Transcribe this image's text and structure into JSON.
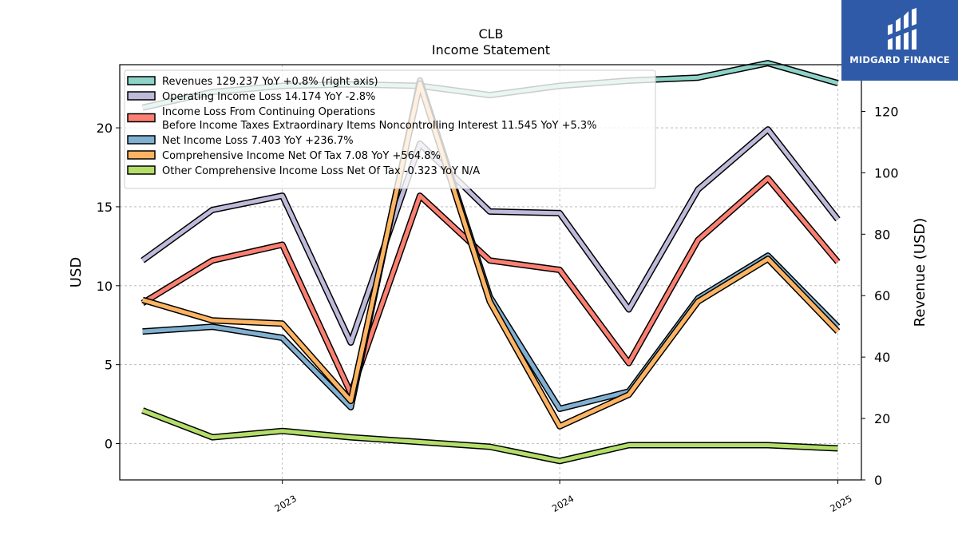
{
  "brand": {
    "name": "MIDGARD FINANCE",
    "logo_icon": "midgard-logo-icon",
    "bg_color": "#2f5aa8"
  },
  "chart_data": {
    "type": "line",
    "title": "CLB",
    "subtitle": "Income Statement",
    "ylabel": "USD",
    "y2label": "Revenue (USD)",
    "ylim": [
      -2.3,
      24.0
    ],
    "y2lim": [
      0,
      135.2
    ],
    "yticks": [
      0,
      5,
      10,
      15,
      20
    ],
    "y2ticks": [
      0,
      20,
      40,
      60,
      80,
      100,
      120
    ],
    "xticks": [
      "2023",
      "2024",
      "2025"
    ],
    "x": [
      "2022-07-01",
      "2022-10-01",
      "2023-01-01",
      "2023-04-01",
      "2023-07-01",
      "2023-10-01",
      "2024-01-01",
      "2024-04-01",
      "2024-07-01",
      "2024-10-01",
      "2025-01-01"
    ],
    "grid": true,
    "legend_position": "top-left",
    "series": [
      {
        "name": "Revenues  129.237 YoY +0.8% (right axis)",
        "axis": "right",
        "color": "#8dd3c7",
        "values": [
          121.2,
          126.3,
          128.3,
          128.8,
          128.3,
          125.3,
          128.3,
          130.0,
          131.0,
          135.7,
          129.2
        ]
      },
      {
        "name": "Operating Income Loss  14.174 YoY -2.8%",
        "axis": "left",
        "color": "#bebada",
        "values": [
          11.6,
          14.8,
          15.7,
          6.4,
          19.0,
          14.7,
          14.6,
          8.5,
          16.1,
          19.9,
          14.2
        ]
      },
      {
        "name": "Income Loss From Continuing Operations\nBefore Income Taxes Extraordinary Items Noncontrolling Interest  11.545 YoY +5.3%",
        "axis": "left",
        "color": "#fb8072",
        "values": [
          8.9,
          11.6,
          12.6,
          3.2,
          15.7,
          11.6,
          11.0,
          5.1,
          12.9,
          16.8,
          11.5
        ]
      },
      {
        "name": "Net Income Loss  7.403 YoY +236.7%",
        "axis": "left",
        "color": "#80b1d3",
        "values": [
          7.1,
          7.4,
          6.7,
          2.3,
          23.0,
          9.3,
          2.2,
          3.3,
          9.2,
          11.9,
          7.4
        ]
      },
      {
        "name": "Comprehensive Income Net Of Tax  7.08 YoY +564.8%",
        "axis": "left",
        "color": "#fdb462",
        "values": [
          9.1,
          7.8,
          7.6,
          2.7,
          22.8,
          9.0,
          1.1,
          3.1,
          9.0,
          11.7,
          7.1
        ]
      },
      {
        "name": "Other Comprehensive Income Loss Net Of Tax  -0.323 YoY N/A",
        "axis": "left",
        "color": "#b3de69",
        "values": [
          2.1,
          0.4,
          0.8,
          0.4,
          0.1,
          -0.2,
          -1.1,
          -0.1,
          -0.1,
          -0.1,
          -0.3
        ]
      }
    ]
  }
}
